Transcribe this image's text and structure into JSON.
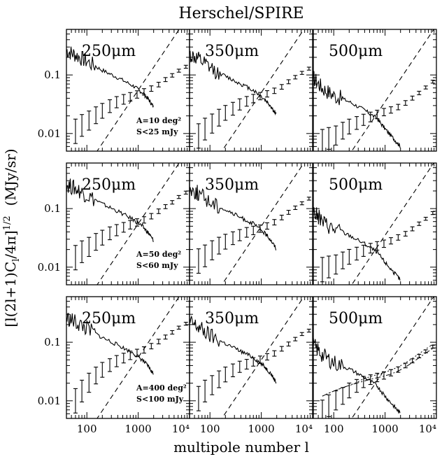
{
  "chart_data": {
    "type": "line",
    "title": "Herschel/SPIRE",
    "xlabel": "multipole number l",
    "ylabel": "[l(2l+1)Cₗ/4π]¹ᐟ²   (MJy/sr)",
    "ylabel_main": "[l(2l+1)C",
    "ylabel_sub": "l",
    "ylabel_tail": "/4π]",
    "ylabel_sup": "1/2",
    "ylabel_unit": "(MJy/sr)",
    "x_scale": "log",
    "y_scale": "log",
    "xlim": [
      40,
      10000
    ],
    "ylim": [
      0.005,
      0.6
    ],
    "x_ticks": [
      "100",
      "1000",
      "10⁴"
    ],
    "y_ticks": [
      "0.1",
      "0.01"
    ],
    "columns": [
      "250μm",
      "350μm",
      "500μm"
    ],
    "rows": [
      {
        "area": "A=10 deg²",
        "flux_cut": "S<25 mJy"
      },
      {
        "area": "A=50 deg²",
        "flux_cut": "S<60 mJy"
      },
      {
        "area": "A=400 deg²",
        "flux_cut": "S<100 mJy"
      }
    ],
    "series_shapes": {
      "cirrus_foreground_solid": {
        "250": [
          [
            40,
            0.26
          ],
          [
            60,
            0.22
          ],
          [
            100,
            0.17
          ],
          [
            200,
            0.12
          ],
          [
            400,
            0.09
          ],
          [
            800,
            0.065
          ],
          [
            1200,
            0.05
          ],
          [
            1600,
            0.038
          ],
          [
            2000,
            0.028
          ]
        ],
        "350": [
          [
            40,
            0.22
          ],
          [
            60,
            0.18
          ],
          [
            100,
            0.13
          ],
          [
            200,
            0.095
          ],
          [
            400,
            0.07
          ],
          [
            700,
            0.055
          ],
          [
            1100,
            0.04
          ],
          [
            1500,
            0.03
          ],
          [
            2000,
            0.02
          ]
        ],
        "500": [
          [
            40,
            0.09
          ],
          [
            60,
            0.06
          ],
          [
            100,
            0.045
          ],
          [
            200,
            0.035
          ],
          [
            400,
            0.025
          ],
          [
            700,
            0.018
          ],
          [
            1000,
            0.012
          ],
          [
            1500,
            0.008
          ],
          [
            2000,
            0.006
          ]
        ]
      },
      "noise_dashed_offset": {
        "250": 0.055,
        "350": 0.05,
        "500": 0.035
      },
      "measured_points": {
        "x": [
          60,
          80,
          110,
          150,
          200,
          280,
          380,
          520,
          700,
          950,
          1300,
          1800,
          2500,
          3400,
          4600,
          6200,
          8500
        ],
        "r1_250": [
          0.012,
          0.015,
          0.018,
          0.022,
          0.026,
          0.031,
          0.036,
          0.04,
          0.044,
          0.048,
          0.053,
          0.06,
          0.07,
          0.085,
          0.1,
          0.12,
          0.14
        ],
        "r1_350": [
          0.01,
          0.013,
          0.016,
          0.02,
          0.024,
          0.028,
          0.033,
          0.037,
          0.041,
          0.045,
          0.049,
          0.055,
          0.064,
          0.078,
          0.093,
          0.11,
          0.13
        ],
        "r1_500": [
          0.008,
          0.009,
          0.01,
          0.012,
          0.014,
          0.016,
          0.018,
          0.02,
          0.022,
          0.024,
          0.026,
          0.029,
          0.034,
          0.041,
          0.05,
          0.062,
          0.078
        ],
        "r2_250": [
          0.016,
          0.02,
          0.024,
          0.029,
          0.034,
          0.04,
          0.045,
          0.05,
          0.055,
          0.06,
          0.066,
          0.076,
          0.092,
          0.11,
          0.13,
          0.16,
          0.19
        ],
        "r2_350": [
          0.014,
          0.017,
          0.021,
          0.025,
          0.029,
          0.033,
          0.037,
          0.041,
          0.044,
          0.047,
          0.052,
          0.06,
          0.072,
          0.088,
          0.105,
          0.125,
          0.15
        ],
        "r2_500": [
          0.01,
          0.011,
          0.012,
          0.014,
          0.016,
          0.018,
          0.02,
          0.022,
          0.024,
          0.026,
          0.029,
          0.033,
          0.038,
          0.046,
          0.056,
          0.068,
          0.085
        ],
        "r3_250": [
          0.011,
          0.016,
          0.022,
          0.029,
          0.036,
          0.043,
          0.05,
          0.056,
          0.062,
          0.068,
          0.076,
          0.088,
          0.105,
          0.125,
          0.15,
          0.18,
          0.21
        ],
        "r3_350": [
          0.012,
          0.016,
          0.02,
          0.025,
          0.03,
          0.035,
          0.04,
          0.044,
          0.048,
          0.052,
          0.058,
          0.066,
          0.079,
          0.095,
          0.115,
          0.14,
          0.16
        ],
        "r3_500": [
          0.007,
          0.009,
          0.011,
          0.013,
          0.016,
          0.019,
          0.022,
          0.024,
          0.026,
          0.028,
          0.031,
          0.035,
          0.041,
          0.049,
          0.059,
          0.071,
          0.085
        ]
      }
    }
  }
}
